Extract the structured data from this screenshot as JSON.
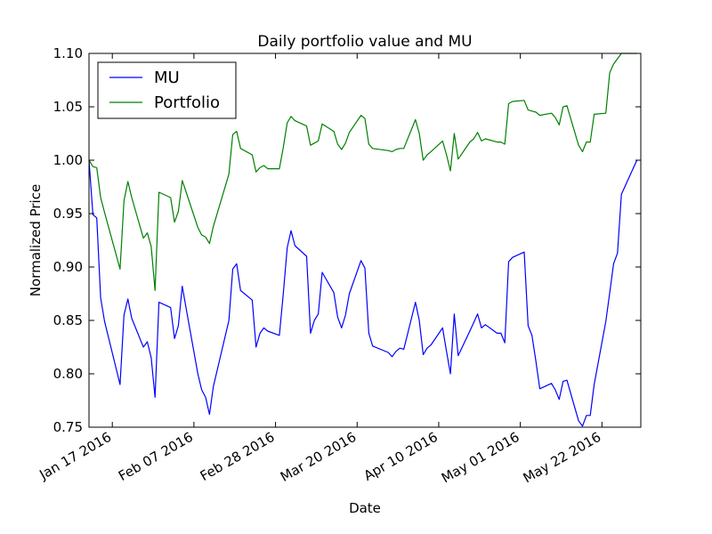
{
  "chart_data": {
    "type": "line",
    "title": "Daily portfolio value and MU",
    "xlabel": "Date",
    "ylabel": "Normalized Price",
    "xlim": [
      "2016-01-11",
      "2016-06-01"
    ],
    "ylim": [
      0.75,
      1.1
    ],
    "y_ticks": [
      0.75,
      0.8,
      0.85,
      0.9,
      0.95,
      1.0,
      1.05,
      1.1
    ],
    "y_tick_labels": [
      "0.75",
      "0.80",
      "0.85",
      "0.90",
      "0.95",
      "1.00",
      "1.05",
      "1.10"
    ],
    "x_ticks": [
      "2016-01-17",
      "2016-02-07",
      "2016-02-28",
      "2016-03-20",
      "2016-04-10",
      "2016-05-01",
      "2016-05-22"
    ],
    "x_tick_labels": [
      "Jan 17 2016",
      "Feb 07 2016",
      "Feb 28 2016",
      "Mar 20 2016",
      "Apr 10 2016",
      "May 01 2016",
      "May 22 2016"
    ],
    "grid": false,
    "legend_position": "top-left",
    "x": [
      "2016-01-11",
      "2016-01-12",
      "2016-01-13",
      "2016-01-14",
      "2016-01-15",
      "2016-01-19",
      "2016-01-20",
      "2016-01-21",
      "2016-01-22",
      "2016-01-25",
      "2016-01-26",
      "2016-01-27",
      "2016-01-28",
      "2016-01-29",
      "2016-02-01",
      "2016-02-02",
      "2016-02-03",
      "2016-02-04",
      "2016-02-05",
      "2016-02-08",
      "2016-02-09",
      "2016-02-10",
      "2016-02-11",
      "2016-02-12",
      "2016-02-16",
      "2016-02-17",
      "2016-02-18",
      "2016-02-19",
      "2016-02-22",
      "2016-02-23",
      "2016-02-24",
      "2016-02-25",
      "2016-02-26",
      "2016-02-29",
      "2016-03-01",
      "2016-03-02",
      "2016-03-03",
      "2016-03-04",
      "2016-03-07",
      "2016-03-08",
      "2016-03-09",
      "2016-03-10",
      "2016-03-11",
      "2016-03-14",
      "2016-03-15",
      "2016-03-16",
      "2016-03-17",
      "2016-03-18",
      "2016-03-21",
      "2016-03-22",
      "2016-03-23",
      "2016-03-24",
      "2016-03-28",
      "2016-03-29",
      "2016-03-30",
      "2016-03-31",
      "2016-04-01",
      "2016-04-04",
      "2016-04-05",
      "2016-04-06",
      "2016-04-07",
      "2016-04-08",
      "2016-04-11",
      "2016-04-12",
      "2016-04-13",
      "2016-04-14",
      "2016-04-15",
      "2016-04-18",
      "2016-04-19",
      "2016-04-20",
      "2016-04-21",
      "2016-04-22",
      "2016-04-25",
      "2016-04-26",
      "2016-04-27",
      "2016-04-28",
      "2016-04-29",
      "2016-05-02",
      "2016-05-03",
      "2016-05-04",
      "2016-05-05",
      "2016-05-06",
      "2016-05-09",
      "2016-05-10",
      "2016-05-11",
      "2016-05-12",
      "2016-05-13",
      "2016-05-16",
      "2016-05-17",
      "2016-05-18",
      "2016-05-19",
      "2016-05-20",
      "2016-05-23",
      "2016-05-24",
      "2016-05-25",
      "2016-05-26",
      "2016-05-27",
      "2016-05-31"
    ],
    "series": [
      {
        "name": "MU",
        "color": "#0000ff",
        "values": [
          1.0,
          0.949,
          0.946,
          0.871,
          0.849,
          0.79,
          0.855,
          0.87,
          0.852,
          0.825,
          0.83,
          0.815,
          0.778,
          0.867,
          0.862,
          0.833,
          0.845,
          0.882,
          0.861,
          0.8,
          0.785,
          0.778,
          0.762,
          0.788,
          0.85,
          0.898,
          0.903,
          0.878,
          0.869,
          0.825,
          0.838,
          0.843,
          0.84,
          0.836,
          0.875,
          0.918,
          0.934,
          0.92,
          0.91,
          0.838,
          0.85,
          0.856,
          0.895,
          0.876,
          0.853,
          0.843,
          0.855,
          0.875,
          0.906,
          0.899,
          0.838,
          0.826,
          0.82,
          0.816,
          0.821,
          0.824,
          0.823,
          0.867,
          0.85,
          0.818,
          0.824,
          0.827,
          0.843,
          0.821,
          0.8,
          0.856,
          0.817,
          0.84,
          0.848,
          0.856,
          0.843,
          0.846,
          0.838,
          0.838,
          0.829,
          0.905,
          0.909,
          0.914,
          0.845,
          0.836,
          0.812,
          0.786,
          0.791,
          0.785,
          0.776,
          0.793,
          0.794,
          0.756,
          0.751,
          0.761,
          0.761,
          0.79,
          0.849,
          0.876,
          0.903,
          0.913,
          0.968,
          1.0
        ]
      },
      {
        "name": "Portfolio",
        "color": "#008000",
        "values": [
          1.0,
          0.994,
          0.993,
          0.965,
          0.951,
          0.898,
          0.962,
          0.98,
          0.965,
          0.927,
          0.932,
          0.919,
          0.878,
          0.97,
          0.965,
          0.942,
          0.952,
          0.981,
          0.97,
          0.937,
          0.93,
          0.928,
          0.922,
          0.938,
          0.987,
          1.024,
          1.027,
          1.011,
          1.005,
          0.989,
          0.993,
          0.995,
          0.992,
          0.992,
          1.012,
          1.035,
          1.041,
          1.037,
          1.032,
          1.014,
          1.016,
          1.018,
          1.034,
          1.027,
          1.015,
          1.01,
          1.016,
          1.026,
          1.042,
          1.039,
          1.015,
          1.011,
          1.009,
          1.008,
          1.01,
          1.011,
          1.011,
          1.038,
          1.025,
          1.0,
          1.005,
          1.008,
          1.018,
          1.005,
          0.99,
          1.025,
          1.001,
          1.017,
          1.02,
          1.026,
          1.018,
          1.02,
          1.017,
          1.017,
          1.015,
          1.053,
          1.055,
          1.056,
          1.047,
          1.046,
          1.045,
          1.042,
          1.044,
          1.04,
          1.033,
          1.05,
          1.051,
          1.014,
          1.008,
          1.017,
          1.017,
          1.043,
          1.044,
          1.082,
          1.09,
          1.095,
          1.1,
          1.1
        ]
      }
    ]
  }
}
